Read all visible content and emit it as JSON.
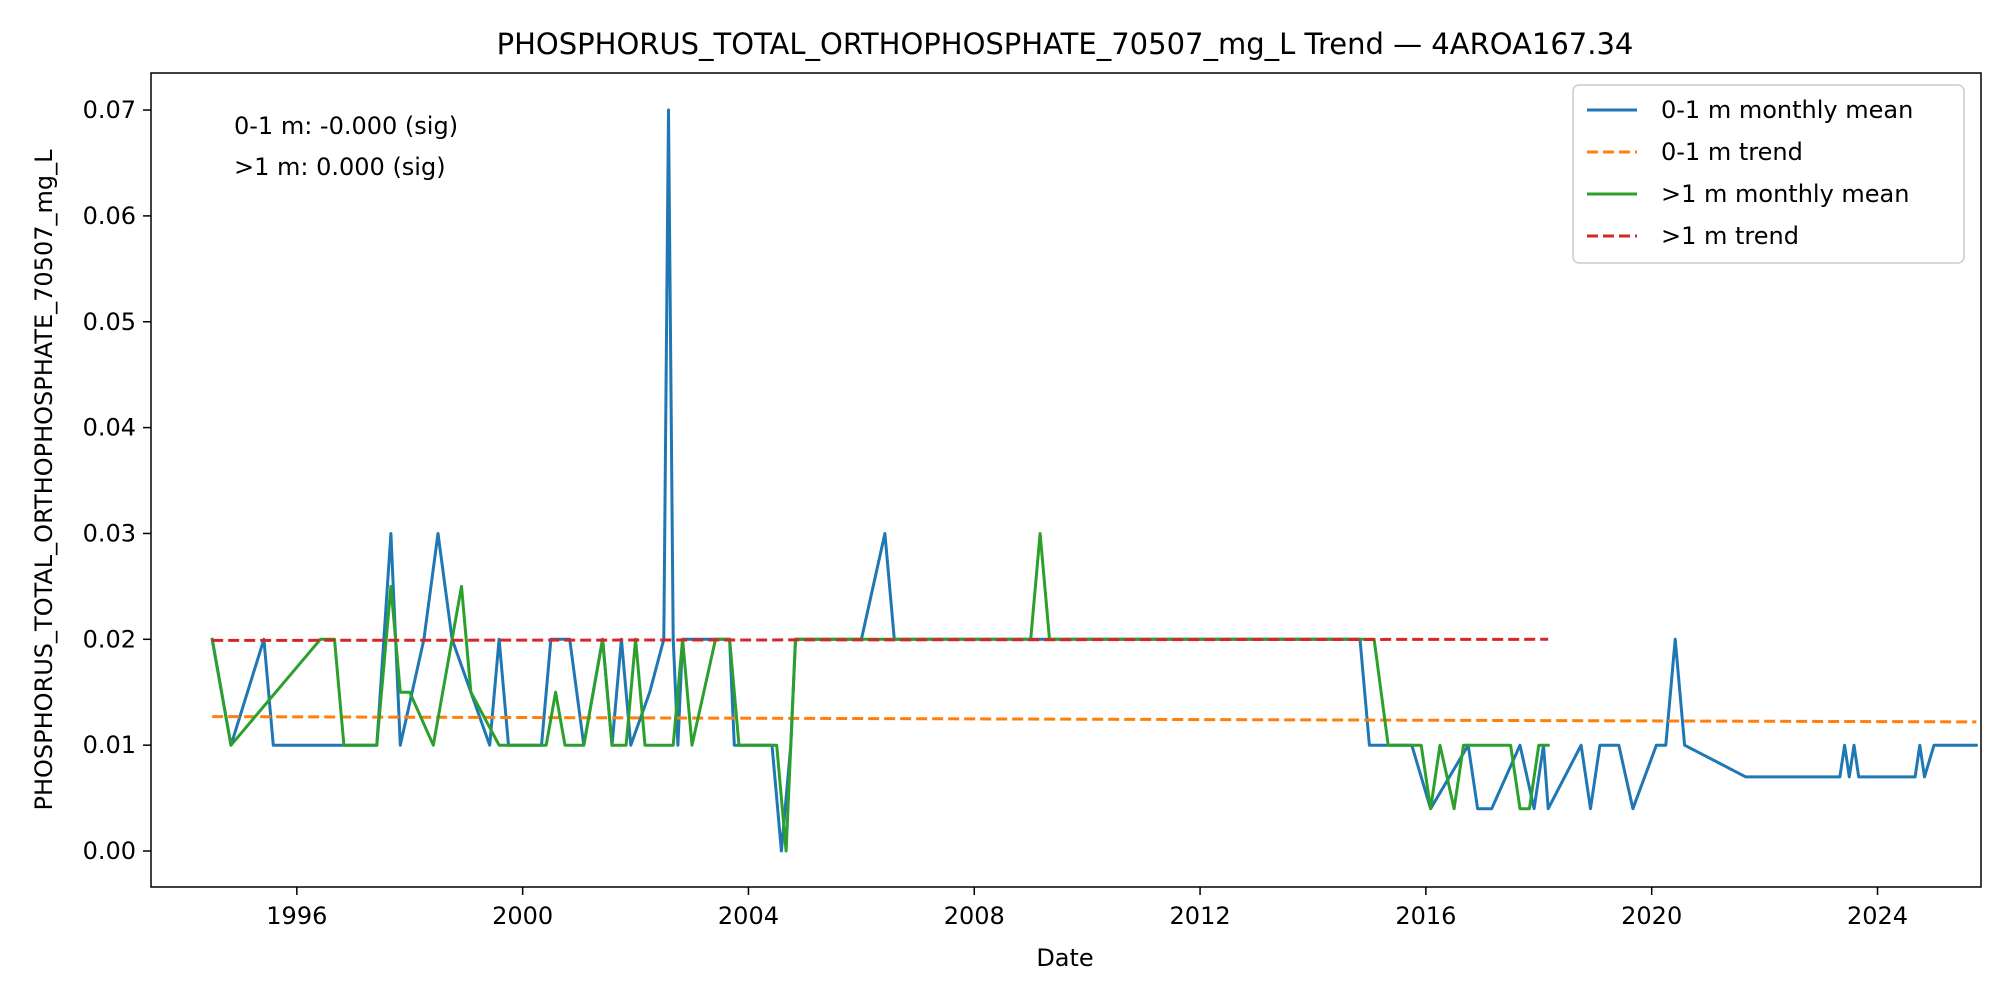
{
  "chart_data": {
    "type": "line",
    "title": "PHOSPHORUS_TOTAL_ORTHOPHOSPHATE_70507_mg_L Trend — 4AROA167.34",
    "xlabel": "Date",
    "ylabel": "PHOSPHORUS_TOTAL_ORTHOPHOSPHATE_70507_mg_L",
    "xlim": [
      "1993-06-01",
      "2025-11-01"
    ],
    "ylim": [
      -0.0034,
      0.0735
    ],
    "x_ticks": [
      "1996",
      "2000",
      "2004",
      "2008",
      "2012",
      "2016",
      "2020",
      "2024"
    ],
    "y_ticks": [
      "0.00",
      "0.01",
      "0.02",
      "0.03",
      "0.04",
      "0.05",
      "0.06",
      "0.07"
    ],
    "grid": false,
    "legend_position": "top-right",
    "annotations": [
      "0-1 m: -0.000 (sig)",
      ">1 m: 0.000 (sig)"
    ],
    "colors": {
      "blue": "#1f77b4",
      "orange": "#ff7f0e",
      "green": "#2ca02c",
      "red": "#d62728"
    },
    "series": [
      {
        "name": "0-1 m monthly mean",
        "color": "#1f77b4",
        "style": "solid",
        "points": [
          [
            "1994-07",
            0.02
          ],
          [
            "1994-11",
            0.01
          ],
          [
            "1995-06",
            0.02
          ],
          [
            "1995-08",
            0.01
          ],
          [
            "1996-06",
            0.01
          ],
          [
            "1997-06",
            0.01
          ],
          [
            "1997-09",
            0.03
          ],
          [
            "1997-11",
            0.01
          ],
          [
            "1998-04",
            0.02
          ],
          [
            "1998-07",
            0.03
          ],
          [
            "1998-10",
            0.02
          ],
          [
            "1999-06",
            0.01
          ],
          [
            "1999-08",
            0.02
          ],
          [
            "1999-10",
            0.01
          ],
          [
            "2000-05",
            0.01
          ],
          [
            "2000-07",
            0.02
          ],
          [
            "2000-11",
            0.02
          ],
          [
            "2001-02",
            0.01
          ],
          [
            "2001-06",
            0.02
          ],
          [
            "2001-08",
            0.01
          ],
          [
            "2001-10",
            0.02
          ],
          [
            "2001-12",
            0.01
          ],
          [
            "2002-04",
            0.015
          ],
          [
            "2002-07",
            0.02
          ],
          [
            "2002-08",
            0.07
          ],
          [
            "2002-09",
            0.02
          ],
          [
            "2002-10",
            0.01
          ],
          [
            "2002-11",
            0.02
          ],
          [
            "2003-06",
            0.02
          ],
          [
            "2003-09",
            0.02
          ],
          [
            "2003-10",
            0.01
          ],
          [
            "2004-06",
            0.01
          ],
          [
            "2004-08",
            0.0
          ],
          [
            "2004-10",
            0.01
          ],
          [
            "2004-11",
            0.02
          ],
          [
            "2006-01",
            0.02
          ],
          [
            "2006-06",
            0.03
          ],
          [
            "2006-08",
            0.02
          ],
          [
            "2014-11",
            0.02
          ],
          [
            "2015-01",
            0.01
          ],
          [
            "2015-08",
            0.01
          ],
          [
            "2015-10",
            0.01
          ],
          [
            "2016-02",
            0.004
          ],
          [
            "2016-10",
            0.01
          ],
          [
            "2016-12",
            0.004
          ],
          [
            "2017-03",
            0.004
          ],
          [
            "2017-09",
            0.01
          ],
          [
            "2017-12",
            0.004
          ],
          [
            "2018-02",
            0.01
          ],
          [
            "2018-03",
            0.004
          ],
          [
            "2018-10",
            0.01
          ],
          [
            "2018-12",
            0.004
          ],
          [
            "2019-02",
            0.01
          ],
          [
            "2019-06",
            0.01
          ],
          [
            "2019-09",
            0.004
          ],
          [
            "2020-02",
            0.01
          ],
          [
            "2020-04",
            0.01
          ],
          [
            "2020-06",
            0.02
          ],
          [
            "2020-08",
            0.01
          ],
          [
            "2021-09",
            0.007
          ],
          [
            "2022-05",
            0.007
          ],
          [
            "2022-08",
            0.007
          ],
          [
            "2023-05",
            0.007
          ],
          [
            "2023-06",
            0.01
          ],
          [
            "2023-07",
            0.007
          ],
          [
            "2023-08",
            0.01
          ],
          [
            "2023-09",
            0.007
          ],
          [
            "2024-09",
            0.007
          ],
          [
            "2024-10",
            0.01
          ],
          [
            "2024-11",
            0.007
          ],
          [
            "2025-01",
            0.01
          ],
          [
            "2025-10",
            0.01
          ]
        ]
      },
      {
        "name": "0-1 m trend",
        "color": "#ff7f0e",
        "style": "dashed",
        "points": [
          [
            "1994-07",
            0.0127
          ],
          [
            "2025-10",
            0.0122
          ]
        ]
      },
      {
        "name": ">1 m monthly mean",
        "color": "#2ca02c",
        "style": "solid",
        "points": [
          [
            "1994-07",
            0.02
          ],
          [
            "1994-11",
            0.01
          ],
          [
            "1996-06",
            0.02
          ],
          [
            "1996-09",
            0.02
          ],
          [
            "1996-11",
            0.01
          ],
          [
            "1997-06",
            0.01
          ],
          [
            "1997-09",
            0.025
          ],
          [
            "1997-11",
            0.015
          ],
          [
            "1998-01",
            0.015
          ],
          [
            "1998-06",
            0.01
          ],
          [
            "1998-10",
            0.02
          ],
          [
            "1998-12",
            0.025
          ],
          [
            "1999-02",
            0.015
          ],
          [
            "1999-08",
            0.01
          ],
          [
            "2000-06",
            0.01
          ],
          [
            "2000-08",
            0.015
          ],
          [
            "2000-10",
            0.01
          ],
          [
            "2001-02",
            0.01
          ],
          [
            "2001-06",
            0.02
          ],
          [
            "2001-08",
            0.01
          ],
          [
            "2001-11",
            0.01
          ],
          [
            "2002-01",
            0.02
          ],
          [
            "2002-03",
            0.01
          ],
          [
            "2002-06",
            0.01
          ],
          [
            "2002-09",
            0.01
          ],
          [
            "2002-11",
            0.02
          ],
          [
            "2003-01",
            0.01
          ],
          [
            "2003-06",
            0.02
          ],
          [
            "2003-09",
            0.02
          ],
          [
            "2003-11",
            0.01
          ],
          [
            "2004-07",
            0.01
          ],
          [
            "2004-09",
            0.0
          ],
          [
            "2004-11",
            0.02
          ],
          [
            "2009-01",
            0.02
          ],
          [
            "2009-03",
            0.03
          ],
          [
            "2009-05",
            0.02
          ],
          [
            "2015-02",
            0.02
          ],
          [
            "2015-05",
            0.01
          ],
          [
            "2015-12",
            0.01
          ],
          [
            "2016-02",
            0.004
          ],
          [
            "2016-04",
            0.01
          ],
          [
            "2016-07",
            0.004
          ],
          [
            "2016-09",
            0.01
          ],
          [
            "2017-07",
            0.01
          ],
          [
            "2017-09",
            0.004
          ],
          [
            "2017-11",
            0.004
          ],
          [
            "2018-01",
            0.01
          ],
          [
            "2018-03",
            0.01
          ]
        ]
      },
      {
        "name": ">1 m trend",
        "color": "#d62728",
        "style": "dashed",
        "points": [
          [
            "1994-07",
            0.0199
          ],
          [
            "2018-03",
            0.02
          ]
        ]
      }
    ]
  }
}
